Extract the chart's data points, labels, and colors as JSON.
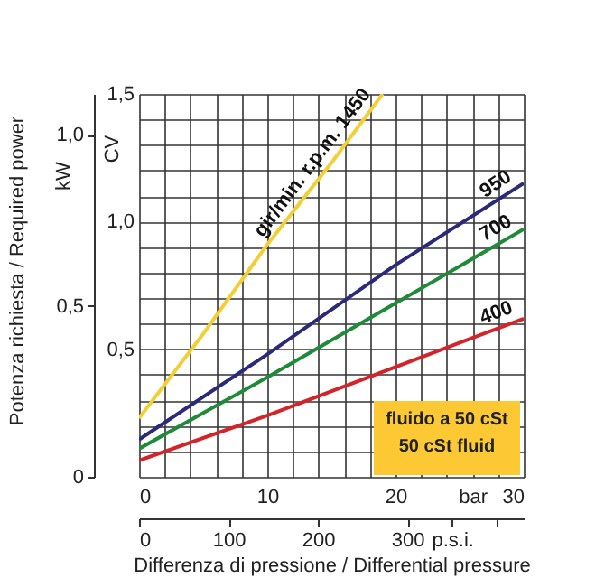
{
  "chart_data": {
    "type": "line",
    "ylabel": "CV",
    "y2label": "kW",
    "xlabel": "Differenza di pressione / Differential pressure",
    "annotations": [
      "Potenza richiesta / Required power",
      "fluido a 50 cSt",
      "50 cSt fluid"
    ],
    "xlim": [
      0,
      30
    ],
    "xticks": [
      0,
      {
        "value": 2,
        "label": null
      },
      {
        "value": 4,
        "label": null
      },
      {
        "value": 6,
        "label": null
      },
      {
        "value": 8,
        "label": null
      },
      10,
      {
        "value": 12,
        "label": null
      },
      {
        "value": 14,
        "label": null
      },
      {
        "value": 16,
        "label": null
      },
      {
        "value": 18,
        "label": null
      },
      20,
      {
        "value": 22,
        "label": null
      },
      {
        "value": 24,
        "label": null
      },
      {
        "value": 26,
        "label": "bar"
      },
      {
        "value": 28,
        "label": null
      },
      30
    ],
    "ylim": [
      0,
      1.5
    ],
    "yticks": [
      {
        "value": 0,
        "label": null
      },
      {
        "value": 0.1,
        "label": null
      },
      {
        "value": 0.2,
        "label": null
      },
      {
        "value": 0.3,
        "label": null
      },
      {
        "value": 0.4,
        "label": null
      },
      {
        "value": 0.5,
        "label": "0,5"
      },
      {
        "value": 0.6,
        "label": null
      },
      {
        "value": 0.7,
        "label": null
      },
      {
        "value": 0.8,
        "label": null
      },
      {
        "value": 0.9,
        "label": null
      },
      {
        "value": 1.0,
        "label": "1,0"
      },
      {
        "value": 1.1,
        "label": null
      },
      {
        "value": 1.2,
        "label": null
      },
      {
        "value": 1.3,
        "label": null
      },
      {
        "value": 1.4,
        "label": null
      },
      {
        "value": 1.5,
        "label": "1,5"
      }
    ],
    "y2lim": [
      0,
      1.12
    ],
    "y2ticks": [
      0,
      {
        "value": 0.5,
        "label": "0,5"
      },
      {
        "value": 1.0,
        "label": "1,0"
      }
    ],
    "x2lim": [
      0,
      430
    ],
    "x2ticks": [
      0,
      100,
      200,
      300,
      {
        "value": 350,
        "label": "p.s.i."
      },
      {
        "value": 400,
        "label": null
      }
    ],
    "grid": true,
    "series": [
      {
        "name": "gir/min. r.p.m. 1450",
        "color": "#f2cf35",
        "x": [
          0,
          5,
          10,
          15,
          19
        ],
        "values": [
          0.23,
          0.56,
          0.91,
          1.23,
          1.5
        ]
      },
      {
        "name": "950",
        "color": "#2b2a7a",
        "x": [
          0,
          10,
          20,
          30
        ],
        "values": [
          0.146,
          0.48,
          0.83,
          1.15
        ]
      },
      {
        "name": "700",
        "color": "#1f8a3a",
        "x": [
          0,
          10,
          20,
          30
        ],
        "values": [
          0.11,
          0.39,
          0.68,
          0.97
        ]
      },
      {
        "name": "400",
        "color": "#d3242a",
        "x": [
          0,
          10,
          20,
          30
        ],
        "values": [
          0.064,
          0.24,
          0.43,
          0.62
        ]
      }
    ]
  }
}
